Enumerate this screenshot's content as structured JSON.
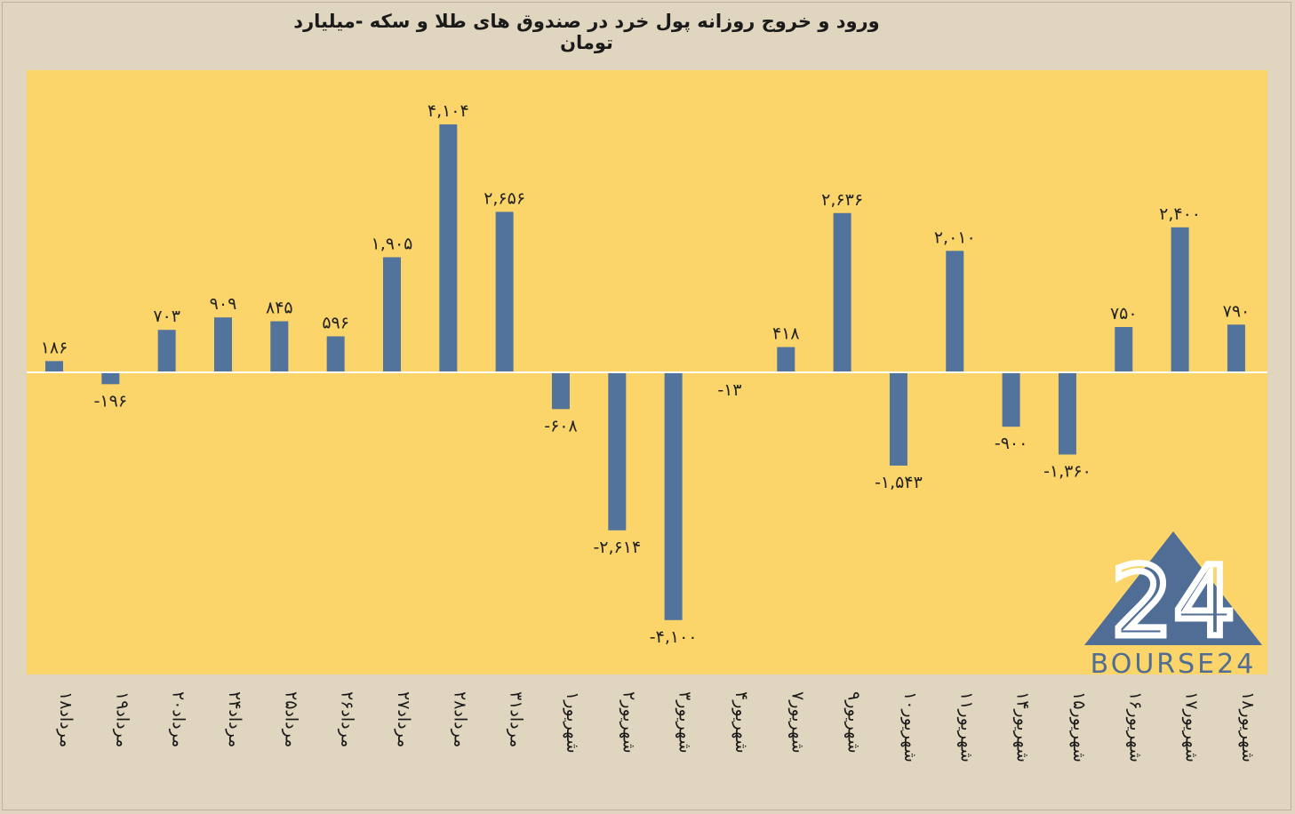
{
  "chart_data": {
    "type": "bar",
    "title": "ورود و خروج روزانه پول خرد در صندوق های طلا و سکه -میلیارد تومان",
    "xlabel": "",
    "ylabel": "",
    "ylim": [
      -4600,
      4700
    ],
    "grid": false,
    "legend": "none",
    "categories": [
      "۱۸مرداد",
      "۱۹مرداد",
      "۲۰مرداد",
      "۲۴مرداد",
      "۲۵مرداد",
      "۲۶مرداد",
      "۲۷مرداد",
      "۲۸مرداد",
      "۳۱مرداد",
      "۱شهریور",
      "۲شهریور",
      "۳شهریور",
      "۴شهریور",
      "۷شهریور",
      "۹شهریور",
      "۱۰شهریور",
      "۱۱شهریور",
      "۱۴شهریور",
      "۱۵شهریور",
      "۱۶شهریور",
      "۱۷شهریور",
      "۱۸شهریور"
    ],
    "values": [
      186,
      -196,
      703,
      909,
      845,
      596,
      1905,
      4104,
      2656,
      -608,
      -2614,
      -4100,
      -13,
      418,
      2636,
      -1543,
      2010,
      -900,
      -1360,
      750,
      2400,
      790
    ],
    "data_labels": [
      "۱۸۶",
      "-۱۹۶",
      "۷۰۳",
      "۹۰۹",
      "۸۴۵",
      "۵۹۶",
      "۱,۹۰۵",
      "۴,۱۰۴",
      "۲,۶۵۶",
      "-۶۰۸",
      "-۲,۶۱۴",
      "-۴,۱۰۰",
      "-۱۳",
      "۴۱۸",
      "۲,۶۳۶",
      "-۱,۵۴۳",
      "۲,۰۱۰",
      "-۹۰۰",
      "-۱,۳۶۰",
      "۷۵۰",
      "۲,۴۰۰",
      "۷۹۰"
    ]
  },
  "colors": {
    "background": "#e0d6bf",
    "plot_area": "#fbd56a",
    "bar": "#52739c",
    "zero_line": "#ffffff",
    "logo": "#4f6d95"
  },
  "watermark": {
    "logo_number": "24",
    "brand": "BOURSE24"
  }
}
